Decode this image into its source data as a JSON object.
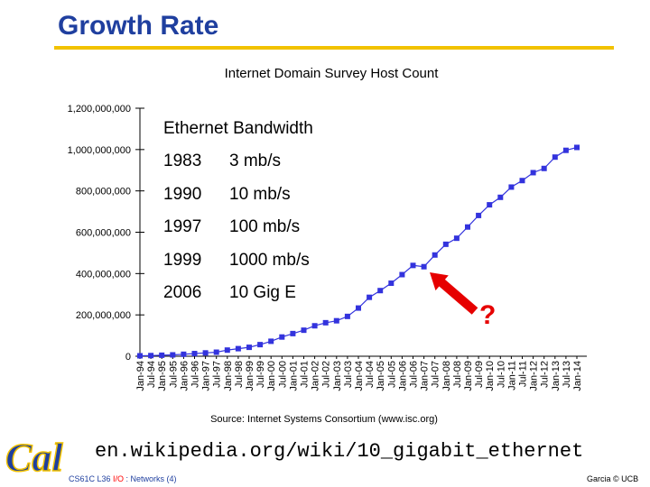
{
  "slide": {
    "title": "Growth Rate",
    "url": "en.wikipedia.org/wiki/10_gigabit_ethernet",
    "course_prefix": "CS61C L36 ",
    "course_io": "I/O",
    "course_suffix": " : Networks (4)",
    "credit": "Garcia © UCB",
    "logo_text": "Cal",
    "question_mark": "?"
  },
  "ethernet_table": {
    "title": "Ethernet Bandwidth",
    "rows": [
      {
        "year": "1983",
        "speed": "3 mb/s"
      },
      {
        "year": "1990",
        "speed": "10 mb/s"
      },
      {
        "year": "1997",
        "speed": "100 mb/s"
      },
      {
        "year": "1999",
        "speed": "1000 mb/s"
      },
      {
        "year": "2006",
        "speed": "10 Gig E"
      }
    ]
  },
  "colors": {
    "title": "#1f3f9f",
    "rule": "#f2c200",
    "series": "#3333dd",
    "arrow": "#e60000"
  },
  "chart_data": {
    "type": "line",
    "title": "Internet Domain Survey Host Count",
    "source": "Source: Internet Systems Consortium (www.isc.org)",
    "xlabel": "",
    "ylabel": "",
    "ylim": [
      0,
      1200000000
    ],
    "yticks": [
      0,
      200000000,
      400000000,
      600000000,
      800000000,
      1000000000,
      1200000000
    ],
    "ytick_labels": [
      "0",
      "200,000,000",
      "400,000,000",
      "600,000,000",
      "800,000,000",
      "1,000,000,000",
      "1,200,000,000"
    ],
    "categories": [
      "Jan-94",
      "Jul-94",
      "Jan-95",
      "Jul-95",
      "Jan-96",
      "Jul-96",
      "Jan-97",
      "Jul-97",
      "Jan-98",
      "Jul-98",
      "Jan-99",
      "Jul-99",
      "Jan-00",
      "Jul-00",
      "Jan-01",
      "Jul-01",
      "Jan-02",
      "Jul-02",
      "Jan-03",
      "Jul-03",
      "Jan-04",
      "Jul-04",
      "Jan-05",
      "Jul-05",
      "Jan-06",
      "Jul-06",
      "Jan-07",
      "Jul-07",
      "Jan-08",
      "Jul-08",
      "Jan-09",
      "Jul-09",
      "Jan-10",
      "Jul-10",
      "Jan-11",
      "Jul-11",
      "Jan-12",
      "Jul-12",
      "Jan-13",
      "Jul-13",
      "Jan-14"
    ],
    "values": [
      2200000,
      3200000,
      4900000,
      6600000,
      9500000,
      12900000,
      16100000,
      19500000,
      29700000,
      36700000,
      43200000,
      56200000,
      72400000,
      93000000,
      109600000,
      125900000,
      147300000,
      162100000,
      171600000,
      192700000,
      233100000,
      285100000,
      317600000,
      353300000,
      394900000,
      439300000,
      433200000,
      489800000,
      541700000,
      570900000,
      625200000,
      681100000,
      732700000,
      768900000,
      818400000,
      849900000,
      888200000,
      908600000,
      963500000,
      996200000,
      1010300000
    ],
    "grid": false,
    "legend": "none"
  }
}
